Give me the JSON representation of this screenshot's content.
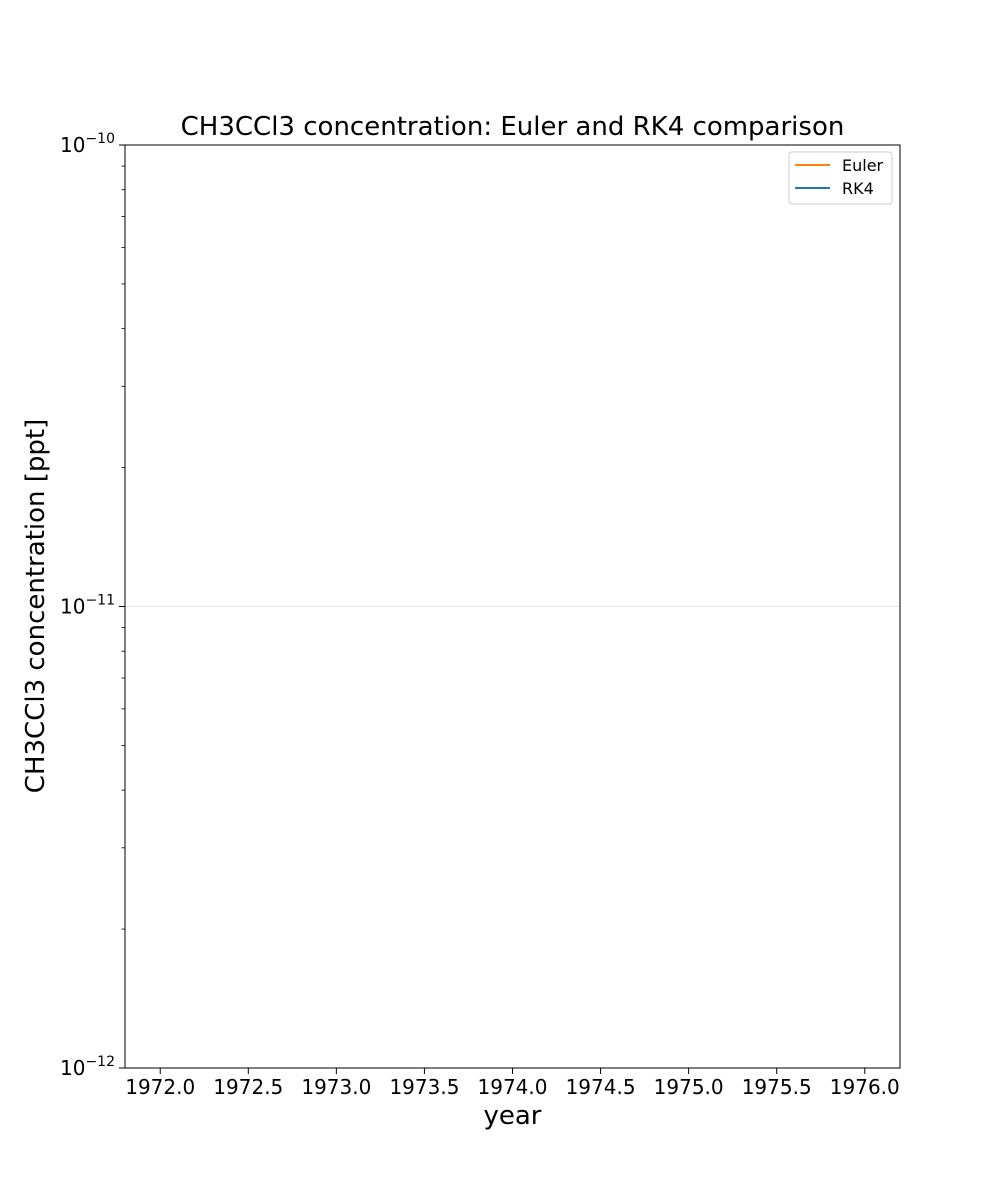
{
  "chart_data": {
    "type": "line",
    "title": "CH3CCl3 concentration: Euler and RK4 comparison",
    "xlabel": "year",
    "ylabel": "CH3CCl3 concentration [ppt]",
    "xlim": [
      1971.8,
      1976.2
    ],
    "ylim": [
      1e-12,
      1e-10
    ],
    "yscale": "log",
    "grid": "horizontal-major-only",
    "legend_position": "top-right",
    "x_ticks": [
      1972.0,
      1972.5,
      1973.0,
      1973.5,
      1974.0,
      1974.5,
      1975.0,
      1975.5,
      1976.0
    ],
    "x_tick_labels": [
      "1972.0",
      "1972.5",
      "1973.0",
      "1973.5",
      "1974.0",
      "1974.5",
      "1975.0",
      "1975.5",
      "1976.0"
    ],
    "y_ticks": [
      {
        "base": "10",
        "exp": "−12",
        "value": 1e-12
      },
      {
        "base": "10",
        "exp": "−11",
        "value": 1e-11
      },
      {
        "base": "10",
        "exp": "−10",
        "value": 1e-10
      }
    ],
    "y_minor_ticks": [
      2e-12,
      3e-12,
      4e-12,
      5e-12,
      6e-12,
      7e-12,
      8e-12,
      9e-12,
      2e-11,
      3e-11,
      4e-11,
      5e-11,
      6e-11,
      7e-11,
      8e-11,
      9e-11
    ],
    "series": [
      {
        "name": "Euler",
        "color": "#ff7f0e",
        "x": [],
        "y": []
      },
      {
        "name": "RK4",
        "color": "#1f77b4",
        "x": [],
        "y": []
      }
    ]
  }
}
